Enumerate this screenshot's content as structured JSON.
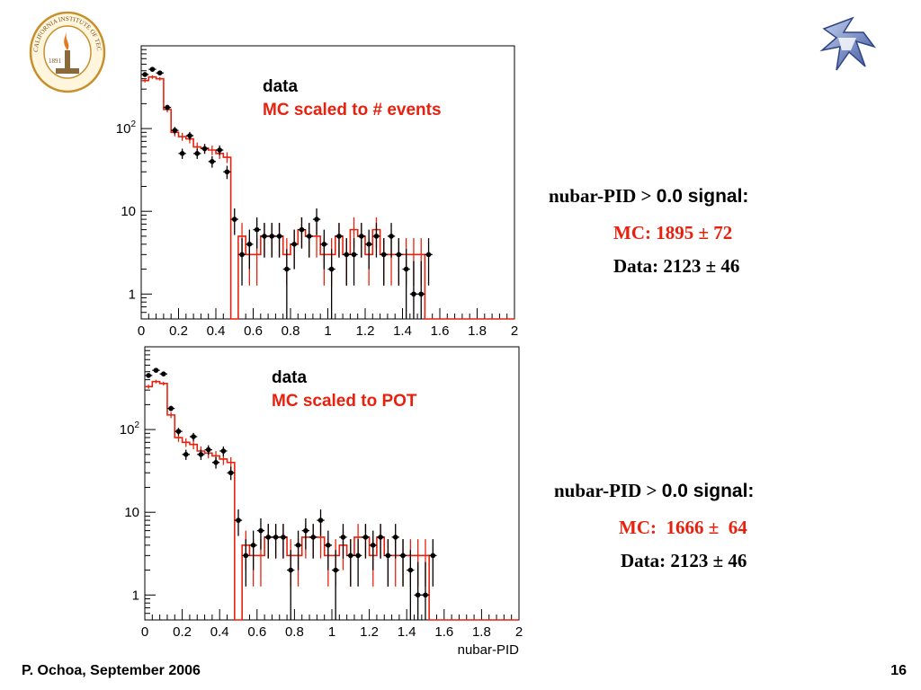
{
  "logos": {
    "caltech_text": "CALIFORNIA INSTITUTE OF TECHNOLOGY",
    "caltech_year": "1891"
  },
  "summaries": [
    {
      "title_prefix": "nubar-PID > ",
      "title_suffix": "0.0 signal:",
      "mc": "MC: 1895 ± 72",
      "data": "Data: 2123 ± 46"
    },
    {
      "title_prefix": "nubar-PID > ",
      "title_suffix": "0.0 signal:",
      "mc": "MC:  1666 ±  64",
      "data": "Data: 2123 ± 46"
    }
  ],
  "footer": {
    "left": "P. Ochoa, September 2006",
    "right": "16"
  },
  "colors": {
    "mc": "#e8210e",
    "data": "#000000"
  },
  "chart_data": [
    {
      "type": "histogram",
      "xlabel": "",
      "xlim": [
        0,
        2
      ],
      "ylim": [
        0.5,
        1000
      ],
      "y_scale": "log",
      "x_ticks": [
        "0",
        "0.2",
        "0.4",
        "0.6",
        "0.8",
        "1",
        "1.2",
        "1.4",
        "1.6",
        "1.8",
        "2"
      ],
      "y_ticks": [
        {
          "label": "1",
          "value": 1
        },
        {
          "label": "10",
          "value": 10
        },
        {
          "label": "10^2",
          "value": 100
        }
      ],
      "legend": [
        "data",
        "MC scaled to # events"
      ],
      "bin_width": 0.04,
      "data_points": [
        {
          "x": 0.02,
          "y": 450
        },
        {
          "x": 0.06,
          "y": 520
        },
        {
          "x": 0.1,
          "y": 470
        },
        {
          "x": 0.14,
          "y": 180
        },
        {
          "x": 0.18,
          "y": 95
        },
        {
          "x": 0.22,
          "y": 50
        },
        {
          "x": 0.26,
          "y": 82
        },
        {
          "x": 0.3,
          "y": 50
        },
        {
          "x": 0.34,
          "y": 57
        },
        {
          "x": 0.38,
          "y": 40
        },
        {
          "x": 0.42,
          "y": 55
        },
        {
          "x": 0.46,
          "y": 30
        },
        {
          "x": 0.5,
          "y": 8
        },
        {
          "x": 0.54,
          "y": 3
        },
        {
          "x": 0.58,
          "y": 4
        },
        {
          "x": 0.62,
          "y": 6
        },
        {
          "x": 0.66,
          "y": 5
        },
        {
          "x": 0.7,
          "y": 5
        },
        {
          "x": 0.74,
          "y": 5
        },
        {
          "x": 0.78,
          "y": 2
        },
        {
          "x": 0.82,
          "y": 4
        },
        {
          "x": 0.86,
          "y": 6
        },
        {
          "x": 0.9,
          "y": 5
        },
        {
          "x": 0.94,
          "y": 8
        },
        {
          "x": 0.98,
          "y": 4
        },
        {
          "x": 1.02,
          "y": 2
        },
        {
          "x": 1.06,
          "y": 5
        },
        {
          "x": 1.1,
          "y": 3
        },
        {
          "x": 1.14,
          "y": 3
        },
        {
          "x": 1.18,
          "y": 5
        },
        {
          "x": 1.22,
          "y": 4
        },
        {
          "x": 1.26,
          "y": 5
        },
        {
          "x": 1.3,
          "y": 3
        },
        {
          "x": 1.34,
          "y": 5
        },
        {
          "x": 1.38,
          "y": 3
        },
        {
          "x": 1.42,
          "y": 2
        },
        {
          "x": 1.46,
          "y": 1
        },
        {
          "x": 1.5,
          "y": 1
        },
        {
          "x": 1.54,
          "y": 3
        }
      ],
      "mc_hist": [
        380,
        420,
        400,
        170,
        90,
        80,
        75,
        60,
        58,
        55,
        50,
        45,
        0.1,
        5,
        3,
        3,
        5,
        5,
        5,
        3,
        4,
        6,
        5,
        5,
        3,
        3,
        5,
        3,
        6,
        5,
        3,
        6,
        3,
        3,
        3,
        3,
        3,
        3,
        0.1,
        0.1,
        0.1,
        0.1,
        0.1,
        0.1,
        0.1,
        0.1,
        0.1,
        0.1,
        0.1,
        0.1
      ]
    },
    {
      "type": "histogram",
      "xlabel": "nubar-PID",
      "xlim": [
        0,
        2
      ],
      "ylim": [
        0.5,
        1000
      ],
      "y_scale": "log",
      "x_ticks": [
        "0",
        "0.2",
        "0.4",
        "0.6",
        "0.8",
        "1",
        "1.2",
        "1.4",
        "1.6",
        "1.8",
        "2"
      ],
      "y_ticks": [
        {
          "label": "1",
          "value": 1
        },
        {
          "label": "10",
          "value": 10
        },
        {
          "label": "10^2",
          "value": 100
        }
      ],
      "legend": [
        "data",
        "MC scaled to POT"
      ],
      "bin_width": 0.04,
      "data_points": [
        {
          "x": 0.02,
          "y": 450
        },
        {
          "x": 0.06,
          "y": 520
        },
        {
          "x": 0.1,
          "y": 470
        },
        {
          "x": 0.14,
          "y": 180
        },
        {
          "x": 0.18,
          "y": 95
        },
        {
          "x": 0.22,
          "y": 50
        },
        {
          "x": 0.26,
          "y": 82
        },
        {
          "x": 0.3,
          "y": 50
        },
        {
          "x": 0.34,
          "y": 57
        },
        {
          "x": 0.38,
          "y": 40
        },
        {
          "x": 0.42,
          "y": 55
        },
        {
          "x": 0.46,
          "y": 30
        },
        {
          "x": 0.5,
          "y": 8
        },
        {
          "x": 0.54,
          "y": 3
        },
        {
          "x": 0.58,
          "y": 4
        },
        {
          "x": 0.62,
          "y": 6
        },
        {
          "x": 0.66,
          "y": 5
        },
        {
          "x": 0.7,
          "y": 5
        },
        {
          "x": 0.74,
          "y": 5
        },
        {
          "x": 0.78,
          "y": 2
        },
        {
          "x": 0.82,
          "y": 4
        },
        {
          "x": 0.86,
          "y": 6
        },
        {
          "x": 0.9,
          "y": 5
        },
        {
          "x": 0.94,
          "y": 8
        },
        {
          "x": 0.98,
          "y": 4
        },
        {
          "x": 1.02,
          "y": 2
        },
        {
          "x": 1.06,
          "y": 5
        },
        {
          "x": 1.1,
          "y": 3
        },
        {
          "x": 1.14,
          "y": 3
        },
        {
          "x": 1.18,
          "y": 5
        },
        {
          "x": 1.22,
          "y": 4
        },
        {
          "x": 1.26,
          "y": 5
        },
        {
          "x": 1.3,
          "y": 3
        },
        {
          "x": 1.34,
          "y": 5
        },
        {
          "x": 1.38,
          "y": 3
        },
        {
          "x": 1.42,
          "y": 2
        },
        {
          "x": 1.46,
          "y": 1
        },
        {
          "x": 1.5,
          "y": 1
        },
        {
          "x": 1.54,
          "y": 3
        }
      ],
      "mc_hist": [
        330,
        380,
        360,
        150,
        80,
        70,
        66,
        55,
        52,
        48,
        44,
        40,
        0.1,
        4,
        3,
        3,
        5,
        5,
        5,
        3,
        3,
        5,
        5,
        5,
        3,
        3,
        4,
        3,
        5,
        5,
        3,
        5,
        3,
        3,
        3,
        3,
        3,
        3,
        0.1,
        0.1,
        0.1,
        0.1,
        0.1,
        0.1,
        0.1,
        0.1,
        0.1,
        0.1,
        0.1,
        0.1
      ]
    }
  ]
}
